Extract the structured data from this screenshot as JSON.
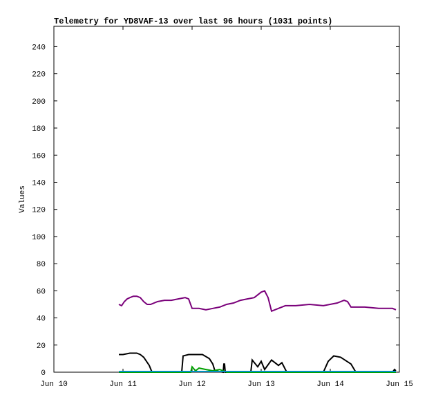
{
  "chart_data": {
    "type": "line",
    "title": "Telemetry for YD8VAF-13 over last 96 hours (1031 points)",
    "y_label": "Values",
    "xlim": [
      10,
      15
    ],
    "xticks": [
      {
        "value": 10,
        "label": "Jun 10"
      },
      {
        "value": 11,
        "label": "Jun 11"
      },
      {
        "value": 12,
        "label": "Jun 12"
      },
      {
        "value": 13,
        "label": "Jun 13"
      },
      {
        "value": 14,
        "label": "Jun 14"
      },
      {
        "value": 15,
        "label": "Jun 15"
      }
    ],
    "ylim": [
      0,
      255
    ],
    "yticks": [
      0,
      20,
      40,
      60,
      80,
      100,
      120,
      140,
      160,
      180,
      200,
      220,
      240
    ],
    "series": [
      {
        "color": "#7a007a",
        "x": [
          10.94,
          10.98,
          11.02,
          11.06,
          11.1,
          11.15,
          11.2,
          11.25,
          11.3,
          11.35,
          11.4,
          11.5,
          11.6,
          11.7,
          11.8,
          11.9,
          11.95,
          12.0,
          12.1,
          12.2,
          12.3,
          12.4,
          12.5,
          12.6,
          12.7,
          12.8,
          12.9,
          13.0,
          13.05,
          13.1,
          13.15,
          13.25,
          13.35,
          13.5,
          13.7,
          13.9,
          14.1,
          14.2,
          14.25,
          14.3,
          14.5,
          14.7,
          14.9,
          14.95
        ],
        "values": [
          50,
          49,
          52,
          54,
          55,
          56,
          56,
          55,
          52,
          50,
          50,
          52,
          53,
          53,
          54,
          55,
          54,
          47,
          47,
          46,
          47,
          48,
          50,
          51,
          53,
          54,
          55,
          59,
          60,
          55,
          45,
          47,
          49,
          49,
          50,
          49,
          51,
          53,
          52,
          48,
          48,
          47,
          47,
          46
        ]
      },
      {
        "color": "#000000",
        "x": [
          10.94,
          11.0,
          11.1,
          11.2,
          11.25,
          11.3,
          11.38,
          11.42,
          11.85,
          11.87,
          11.95,
          12.05,
          12.15,
          12.25,
          12.3,
          12.33,
          12.45,
          12.46,
          12.47,
          12.48,
          12.85,
          12.87,
          12.95,
          13.0,
          13.05,
          13.15,
          13.25,
          13.3,
          13.37,
          13.9,
          13.97,
          14.05,
          14.15,
          14.3,
          14.37,
          14.9,
          14.93,
          14.95
        ],
        "values": [
          13,
          13,
          14,
          14,
          13,
          11,
          5,
          0,
          0,
          12,
          13,
          13,
          13,
          10,
          6,
          1,
          0,
          6,
          6,
          0,
          0,
          9,
          4,
          8,
          2,
          9,
          5,
          7,
          0,
          0,
          8,
          12,
          11,
          6,
          0,
          0,
          2,
          1
        ]
      },
      {
        "color": "#00a000",
        "x": [
          10.94,
          11.98,
          12.0,
          12.05,
          12.1,
          12.2,
          12.3,
          12.4,
          12.5,
          14.95
        ],
        "values": [
          0,
          0,
          4,
          1,
          3,
          2,
          1,
          2,
          0,
          0
        ]
      },
      {
        "color": "#0090c0",
        "x": [
          10.94,
          14.95
        ],
        "values": [
          0.5,
          0.5
        ]
      }
    ]
  }
}
